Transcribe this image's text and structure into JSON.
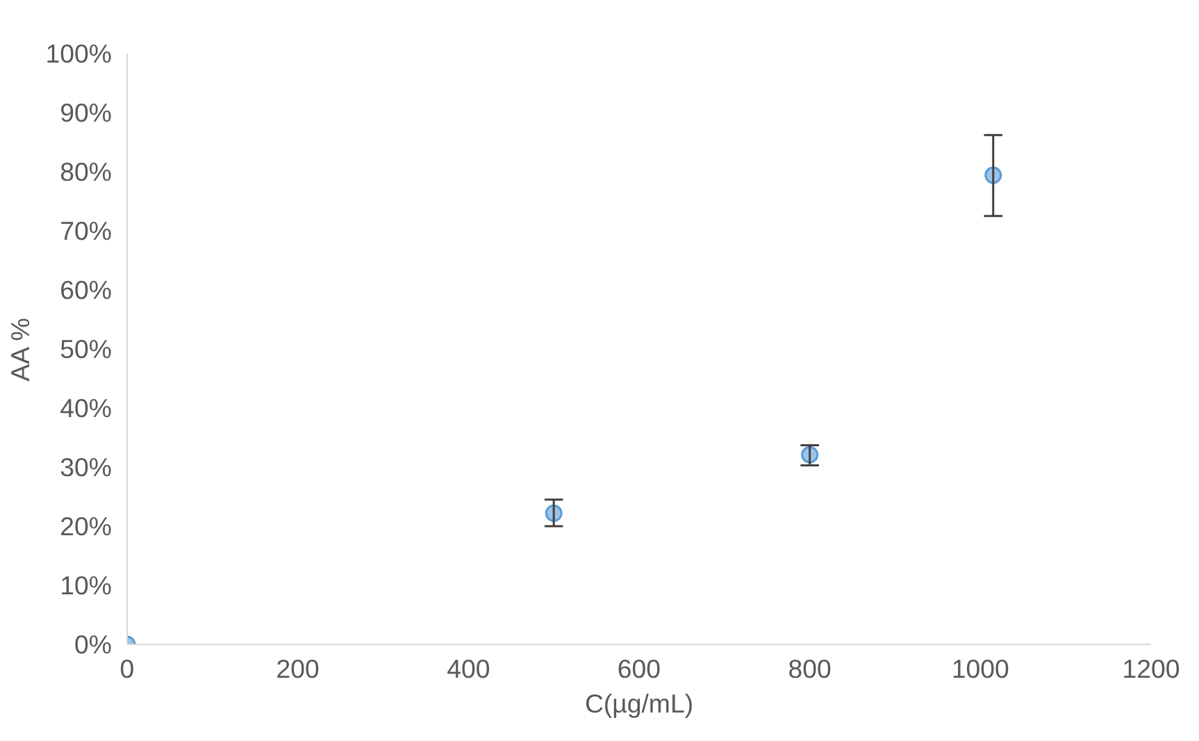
{
  "chart_data": {
    "type": "scatter",
    "xlabel": "C(µg/mL)",
    "ylabel": "AA %",
    "x": [
      0,
      500,
      800,
      1015
    ],
    "series": [
      {
        "color": "#9dc3e6",
        "values": [
          0,
          22.2,
          32.1,
          79.4
        ],
        "errors": [
          null,
          [
            20,
            24.5
          ],
          [
            30.3,
            33.7
          ],
          [
            72.5,
            86.2
          ]
        ]
      }
    ],
    "xlim": [
      0,
      1200
    ],
    "ylim": [
      0,
      100
    ],
    "xticks": [
      0,
      200,
      400,
      600,
      800,
      1000,
      1200
    ],
    "yticks": [
      {
        "value": 0,
        "label": "0%"
      },
      {
        "value": 10,
        "label": "10%"
      },
      {
        "value": 20,
        "label": "20%"
      },
      {
        "value": 30,
        "label": "30%"
      },
      {
        "value": 40,
        "label": "40%"
      },
      {
        "value": 50,
        "label": "50%"
      },
      {
        "value": 60,
        "label": "60%"
      },
      {
        "value": 70,
        "label": "70%"
      },
      {
        "value": 80,
        "label": "80%"
      },
      {
        "value": 90,
        "label": "90%"
      },
      {
        "value": 100,
        "label": "100%"
      }
    ],
    "marker": "circle"
  }
}
